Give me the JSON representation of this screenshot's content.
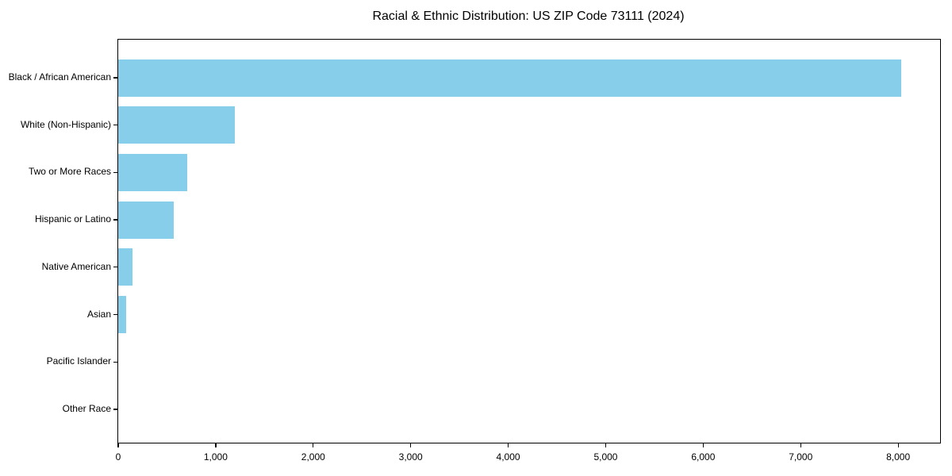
{
  "title": "Racial & Ethnic Distribution: US ZIP Code 73111 (2024)",
  "colors": {
    "bar": "#87CEEB",
    "text": "#000000",
    "spine": "#000000",
    "background": "#ffffff"
  },
  "chart_data": {
    "type": "bar",
    "orientation": "horizontal",
    "title": "Racial & Ethnic Distribution: US ZIP Code 73111 (2024)",
    "categories": [
      "Black / African American",
      "White (Non-Hispanic)",
      "Two or More Races",
      "Hispanic or Latino",
      "Native American",
      "Asian",
      "Pacific Islander",
      "Other Race"
    ],
    "values": [
      8030,
      1200,
      710,
      570,
      150,
      80,
      0,
      0
    ],
    "xlabel": "",
    "ylabel": "",
    "xlim": [
      0,
      8430
    ],
    "x_ticks": [
      0,
      1000,
      2000,
      3000,
      4000,
      5000,
      6000,
      7000,
      8000
    ],
    "x_tick_labels": [
      "0",
      "1,000",
      "2,000",
      "3,000",
      "4,000",
      "5,000",
      "6,000",
      "7,000",
      "8,000"
    ],
    "grid": false,
    "legend": null
  }
}
